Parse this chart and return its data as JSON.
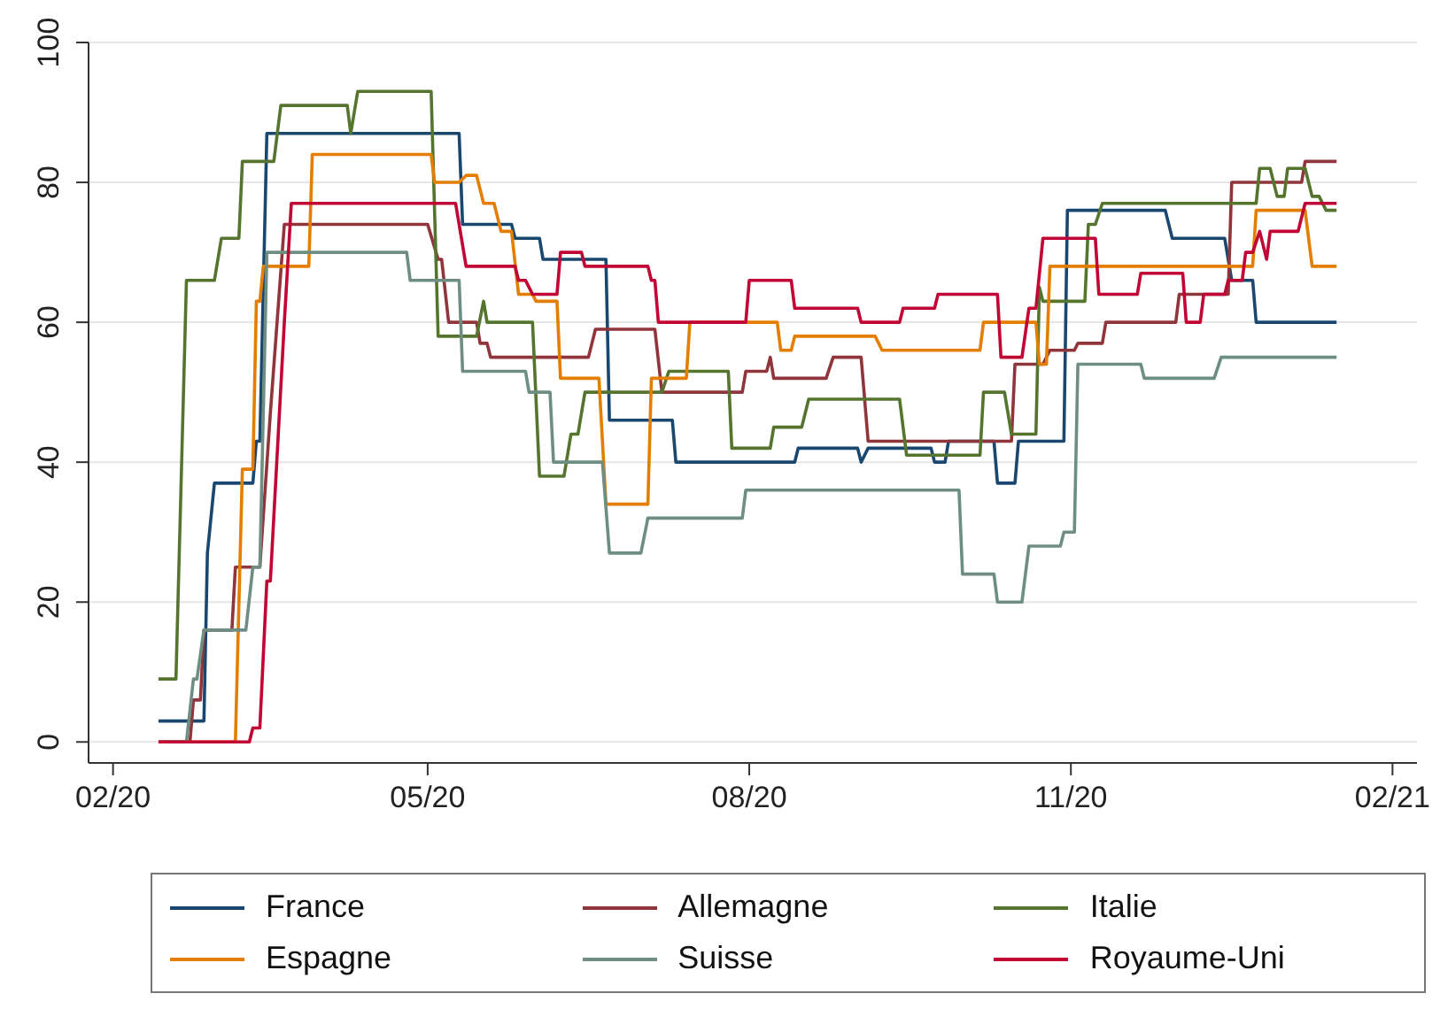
{
  "chart_data": {
    "type": "line",
    "xlim": [
      "2020-01-25",
      "2021-02-08"
    ],
    "xticks": [
      {
        "value": "2020-02-01",
        "label": "02/20"
      },
      {
        "value": "2020-05-01",
        "label": "05/20"
      },
      {
        "value": "2020-08-01",
        "label": "08/20"
      },
      {
        "value": "2020-11-01",
        "label": "11/20"
      },
      {
        "value": "2021-02-01",
        "label": "02/21"
      }
    ],
    "ylim": [
      -3,
      100
    ],
    "yticks": [
      0,
      20,
      40,
      60,
      80,
      100
    ],
    "grid": "y",
    "legend": "bottom",
    "marker": "none",
    "line_style": "solid",
    "series": [
      {
        "name": "France",
        "color": "#1a476f",
        "x": [
          "2020-02-14",
          "2020-02-27",
          "2020-02-28",
          "2020-03-01",
          "2020-03-12",
          "2020-03-13",
          "2020-03-14",
          "2020-03-16",
          "2020-05-10",
          "2020-05-11",
          "2020-05-25",
          "2020-05-26",
          "2020-06-02",
          "2020-06-03",
          "2020-06-21",
          "2020-06-22",
          "2020-07-10",
          "2020-07-11",
          "2020-08-14",
          "2020-08-15",
          "2020-09-01",
          "2020-09-02",
          "2020-09-04",
          "2020-09-22",
          "2020-09-23",
          "2020-09-26",
          "2020-09-27",
          "2020-10-10",
          "2020-10-11",
          "2020-10-16",
          "2020-10-17",
          "2020-10-30",
          "2020-10-31",
          "2020-11-28",
          "2020-11-30",
          "2020-12-15",
          "2020-12-17",
          "2020-12-23",
          "2020-12-24",
          "2021-01-16"
        ],
        "values": [
          3,
          3,
          27,
          37,
          37,
          43,
          43,
          87,
          87,
          74,
          74,
          72,
          72,
          69,
          69,
          46,
          46,
          40,
          40,
          42,
          42,
          40,
          42,
          42,
          40,
          40,
          43,
          43,
          37,
          37,
          43,
          43,
          76,
          76,
          72,
          72,
          66,
          66,
          60,
          60
        ]
      },
      {
        "name": "Allemagne",
        "color": "#90353b",
        "x": [
          "2020-02-14",
          "2020-02-23",
          "2020-02-24",
          "2020-02-26",
          "2020-02-27",
          "2020-03-06",
          "2020-03-07",
          "2020-03-14",
          "2020-03-17",
          "2020-03-21",
          "2020-05-01",
          "2020-05-04",
          "2020-05-05",
          "2020-05-07",
          "2020-05-15",
          "2020-05-16",
          "2020-05-18",
          "2020-05-19",
          "2020-06-16",
          "2020-06-18",
          "2020-07-05",
          "2020-07-07",
          "2020-07-30",
          "2020-07-31",
          "2020-08-06",
          "2020-08-07",
          "2020-08-08",
          "2020-08-23",
          "2020-08-25",
          "2020-09-02",
          "2020-09-04",
          "2020-10-15",
          "2020-10-16",
          "2020-10-24",
          "2020-10-26",
          "2020-11-02",
          "2020-11-03",
          "2020-11-10",
          "2020-11-11",
          "2020-12-01",
          "2020-12-02",
          "2020-12-16",
          "2020-12-17",
          "2021-01-06",
          "2021-01-07",
          "2021-01-16"
        ],
        "values": [
          0,
          0,
          6,
          6,
          16,
          16,
          25,
          25,
          47,
          74,
          74,
          69,
          69,
          60,
          60,
          57,
          57,
          55,
          55,
          59,
          59,
          50,
          50,
          53,
          53,
          55,
          52,
          52,
          55,
          55,
          43,
          43,
          54,
          54,
          56,
          56,
          57,
          57,
          60,
          60,
          64,
          64,
          80,
          80,
          83,
          83
        ]
      },
      {
        "name": "Italie",
        "color": "#55752f",
        "x": [
          "2020-02-14",
          "2020-02-19",
          "2020-02-22",
          "2020-03-01",
          "2020-03-03",
          "2020-03-08",
          "2020-03-09",
          "2020-03-18",
          "2020-03-20",
          "2020-04-08",
          "2020-04-09",
          "2020-04-11",
          "2020-05-02",
          "2020-05-04",
          "2020-05-15",
          "2020-05-17",
          "2020-05-18",
          "2020-05-31",
          "2020-06-02",
          "2020-06-09",
          "2020-06-11",
          "2020-06-13",
          "2020-06-15",
          "2020-07-07",
          "2020-07-09",
          "2020-07-26",
          "2020-07-27",
          "2020-08-07",
          "2020-08-08",
          "2020-08-16",
          "2020-08-18",
          "2020-09-13",
          "2020-09-15",
          "2020-10-06",
          "2020-10-07",
          "2020-10-13",
          "2020-10-15",
          "2020-10-22",
          "2020-10-23",
          "2020-10-24",
          "2020-11-05",
          "2020-11-06",
          "2020-11-08",
          "2020-11-10",
          "2020-12-24",
          "2020-12-25",
          "2020-12-28",
          "2020-12-30",
          "2021-01-01",
          "2021-01-02",
          "2021-01-07",
          "2021-01-09",
          "2021-01-11",
          "2021-01-13",
          "2021-01-16"
        ],
        "values": [
          9,
          9,
          66,
          66,
          72,
          72,
          83,
          83,
          91,
          91,
          87,
          93,
          93,
          58,
          58,
          63,
          60,
          60,
          38,
          38,
          44,
          44,
          50,
          50,
          53,
          53,
          42,
          42,
          45,
          45,
          49,
          49,
          41,
          41,
          50,
          50,
          44,
          44,
          65,
          63,
          63,
          74,
          74,
          77,
          77,
          82,
          82,
          78,
          78,
          82,
          82,
          78,
          78,
          76,
          76
        ]
      },
      {
        "name": "Espagne",
        "color": "#e37e00",
        "x": [
          "2020-02-14",
          "2020-03-07",
          "2020-03-09",
          "2020-03-12",
          "2020-03-13",
          "2020-03-14",
          "2020-03-15",
          "2020-03-28",
          "2020-03-29",
          "2020-05-02",
          "2020-05-03",
          "2020-05-10",
          "2020-05-12",
          "2020-05-15",
          "2020-05-17",
          "2020-05-20",
          "2020-05-22",
          "2020-05-25",
          "2020-05-27",
          "2020-05-31",
          "2020-06-01",
          "2020-06-07",
          "2020-06-08",
          "2020-06-19",
          "2020-06-21",
          "2020-07-03",
          "2020-07-04",
          "2020-07-14",
          "2020-07-15",
          "2020-08-09",
          "2020-08-10",
          "2020-08-13",
          "2020-08-14",
          "2020-09-06",
          "2020-09-08",
          "2020-10-06",
          "2020-10-07",
          "2020-10-22",
          "2020-10-23",
          "2020-10-25",
          "2020-10-26",
          "2020-12-23",
          "2020-12-24",
          "2021-01-07",
          "2021-01-09",
          "2021-01-16"
        ],
        "values": [
          0,
          0,
          39,
          39,
          63,
          63,
          68,
          68,
          84,
          84,
          80,
          80,
          81,
          81,
          77,
          77,
          73,
          73,
          64,
          64,
          63,
          63,
          52,
          52,
          34,
          34,
          52,
          52,
          60,
          60,
          56,
          56,
          58,
          58,
          56,
          56,
          60,
          60,
          54,
          54,
          68,
          68,
          76,
          76,
          68,
          68
        ]
      },
      {
        "name": "Suisse",
        "color": "#6e8e84",
        "x": [
          "2020-02-14",
          "2020-02-22",
          "2020-02-24",
          "2020-02-25",
          "2020-02-27",
          "2020-03-10",
          "2020-03-12",
          "2020-03-14",
          "2020-03-16",
          "2020-04-25",
          "2020-04-26",
          "2020-05-10",
          "2020-05-11",
          "2020-05-29",
          "2020-05-30",
          "2020-06-05",
          "2020-06-06",
          "2020-06-20",
          "2020-06-22",
          "2020-07-01",
          "2020-07-03",
          "2020-07-30",
          "2020-07-31",
          "2020-09-30",
          "2020-10-01",
          "2020-10-10",
          "2020-10-11",
          "2020-10-18",
          "2020-10-20",
          "2020-10-29",
          "2020-10-30",
          "2020-11-02",
          "2020-11-03",
          "2020-11-21",
          "2020-11-22",
          "2020-12-12",
          "2020-12-14",
          "2021-01-16"
        ],
        "values": [
          0,
          0,
          9,
          9,
          16,
          16,
          25,
          25,
          70,
          70,
          66,
          66,
          53,
          53,
          50,
          50,
          40,
          40,
          27,
          27,
          32,
          32,
          36,
          36,
          24,
          24,
          20,
          20,
          28,
          28,
          30,
          30,
          54,
          54,
          52,
          52,
          55,
          55
        ]
      },
      {
        "name": "Royaume-Uni",
        "color": "#c10534",
        "x": [
          "2020-02-14",
          "2020-03-11",
          "2020-03-12",
          "2020-03-14",
          "2020-03-16",
          "2020-03-17",
          "2020-03-21",
          "2020-03-23",
          "2020-05-09",
          "2020-05-12",
          "2020-05-26",
          "2020-05-27",
          "2020-05-29",
          "2020-05-31",
          "2020-06-07",
          "2020-06-08",
          "2020-06-14",
          "2020-06-15",
          "2020-07-03",
          "2020-07-04",
          "2020-07-05",
          "2020-07-06",
          "2020-07-31",
          "2020-08-01",
          "2020-08-13",
          "2020-08-14",
          "2020-09-01",
          "2020-09-02",
          "2020-09-13",
          "2020-09-14",
          "2020-09-23",
          "2020-09-24",
          "2020-10-11",
          "2020-10-12",
          "2020-10-18",
          "2020-10-20",
          "2020-10-22",
          "2020-10-24",
          "2020-11-08",
          "2020-11-09",
          "2020-11-20",
          "2020-11-21",
          "2020-12-03",
          "2020-12-04",
          "2020-12-08",
          "2020-12-09",
          "2020-12-15",
          "2020-12-16",
          "2020-12-20",
          "2020-12-21",
          "2020-12-23",
          "2020-12-25",
          "2020-12-27",
          "2020-12-28",
          "2021-01-05",
          "2021-01-07",
          "2021-01-16"
        ],
        "values": [
          0,
          0,
          2,
          2,
          23,
          23,
          60,
          77,
          77,
          68,
          68,
          66,
          66,
          64,
          64,
          70,
          70,
          68,
          68,
          66,
          66,
          60,
          60,
          66,
          66,
          62,
          62,
          60,
          60,
          62,
          62,
          64,
          64,
          55,
          55,
          62,
          62,
          72,
          72,
          64,
          64,
          67,
          67,
          60,
          60,
          64,
          64,
          66,
          66,
          70,
          70,
          73,
          69,
          73,
          73,
          77,
          77
        ]
      }
    ]
  }
}
